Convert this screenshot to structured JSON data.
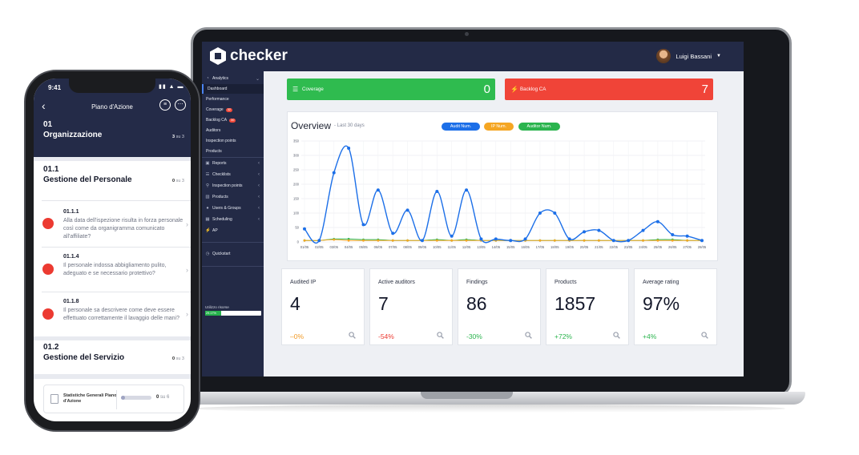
{
  "app": {
    "logo_text": "checker",
    "user_name": "Luigi Bassani"
  },
  "sidebar": {
    "items": [
      {
        "label": "Analytics",
        "icon": "pie-chart-icon"
      },
      {
        "label": "Reports",
        "icon": "document-icon"
      },
      {
        "label": "Checklists",
        "icon": "list-icon"
      },
      {
        "label": "Inspection points",
        "icon": "pin-icon"
      },
      {
        "label": "Products",
        "icon": "box-icon"
      },
      {
        "label": "Users & Groups",
        "icon": "users-icon"
      },
      {
        "label": "Scheduling",
        "icon": "calendar-icon"
      },
      {
        "label": "AP",
        "icon": "bolt-icon"
      },
      {
        "label": "Quickstart",
        "icon": "clock-icon"
      }
    ],
    "sub_items": [
      {
        "label": "Dashboard"
      },
      {
        "label": "Performance"
      },
      {
        "label": "Coverage",
        "badge": "32"
      },
      {
        "label": "Backlog CA",
        "badge": "30"
      },
      {
        "label": "Auditors"
      },
      {
        "label": "Inspection points"
      },
      {
        "label": "Products"
      }
    ],
    "usage_label": "Utilizzo risorse",
    "usage_value": "29.17%",
    "usage_fraction": 0.2917
  },
  "kpis": [
    {
      "label": "Coverage",
      "value": "0",
      "icon": "checklist-icon",
      "color": "#2fbb4f"
    },
    {
      "label": "Backlog CA",
      "value": "7",
      "icon": "bolt-icon",
      "color": "#f04438"
    }
  ],
  "overview": {
    "title": "Overview",
    "subtitle": "- Last 30 days"
  },
  "chart_data": {
    "type": "line",
    "x": [
      "01/05",
      "02/05",
      "03/05",
      "04/05",
      "05/05",
      "06/05",
      "07/05",
      "08/05",
      "09/05",
      "10/05",
      "11/05",
      "12/05",
      "13/05",
      "14/05",
      "15/05",
      "16/05",
      "17/05",
      "18/05",
      "19/05",
      "20/05",
      "21/05",
      "22/05",
      "23/05",
      "24/05",
      "25/05",
      "26/05",
      "27/05",
      "28/05"
    ],
    "series": [
      {
        "name": "Audit Num.",
        "color": "#1c6fe8",
        "values": [
          45,
          5,
          240,
          325,
          60,
          180,
          30,
          110,
          5,
          175,
          20,
          180,
          10,
          10,
          5,
          10,
          100,
          100,
          10,
          35,
          40,
          5,
          5,
          40,
          70,
          25,
          20,
          5
        ]
      },
      {
        "name": "IP Num.",
        "color": "#f5a623",
        "values": [
          5,
          5,
          8,
          5,
          5,
          5,
          5,
          5,
          5,
          5,
          5,
          5,
          5,
          5,
          5,
          5,
          5,
          5,
          5,
          5,
          5,
          5,
          5,
          5,
          5,
          5,
          5,
          5
        ]
      },
      {
        "name": "Auditor Num.",
        "color": "#2bb44e",
        "values": [
          5,
          5,
          10,
          10,
          8,
          8,
          5,
          5,
          5,
          8,
          5,
          8,
          5,
          5,
          5,
          5,
          5,
          5,
          5,
          5,
          5,
          5,
          5,
          5,
          8,
          8,
          5,
          5
        ]
      }
    ],
    "ylim": [
      0,
      350
    ],
    "yticks": [
      "0",
      "50",
      "100",
      "150",
      "200",
      "250",
      "300",
      "350"
    ],
    "grid": true,
    "legend": "top"
  },
  "stats": [
    {
      "label": "Audited IP",
      "value": "4",
      "change": "–0%",
      "trend": "neutral"
    },
    {
      "label": "Active auditors",
      "value": "7",
      "change": "-54%",
      "trend": "negative"
    },
    {
      "label": "Findings",
      "value": "86",
      "change": "-30%",
      "trend": "positive"
    },
    {
      "label": "Products",
      "value": "1857",
      "change": "+72%",
      "trend": "positive"
    },
    {
      "label": "Average rating",
      "value": "97%",
      "change": "+4%",
      "trend": "positive"
    }
  ],
  "phone": {
    "time": "9:41",
    "title": "Piano d'Azione",
    "section1": {
      "num": "01",
      "name": "Organizzazione",
      "count": "3",
      "total": "su 3"
    },
    "section2": {
      "num": "01.1",
      "name": "Gestione del Personale",
      "count": "0",
      "total": "su 3"
    },
    "questions": [
      {
        "num": "01.1.1",
        "text": "Alla data dell'ispezione risulta in forza personale così come da organigramma comunicato all'affiliate?"
      },
      {
        "num": "01.1.4",
        "text": "Il personale indossa abbigliamento pulito, adeguato e se necessario protettivo?"
      },
      {
        "num": "01.1.8",
        "text": "Il personale sa descrivere come deve essere effettuato correttamente il lavaggio delle mani?"
      }
    ],
    "section3": {
      "num": "01.2",
      "name": "Gestione del Servizio",
      "count": "0",
      "total": "su 3"
    },
    "footer": {
      "title": "Statistiche Generali Piano d'Azione",
      "count": "0",
      "total": "su 6",
      "progress": 0.14
    }
  }
}
